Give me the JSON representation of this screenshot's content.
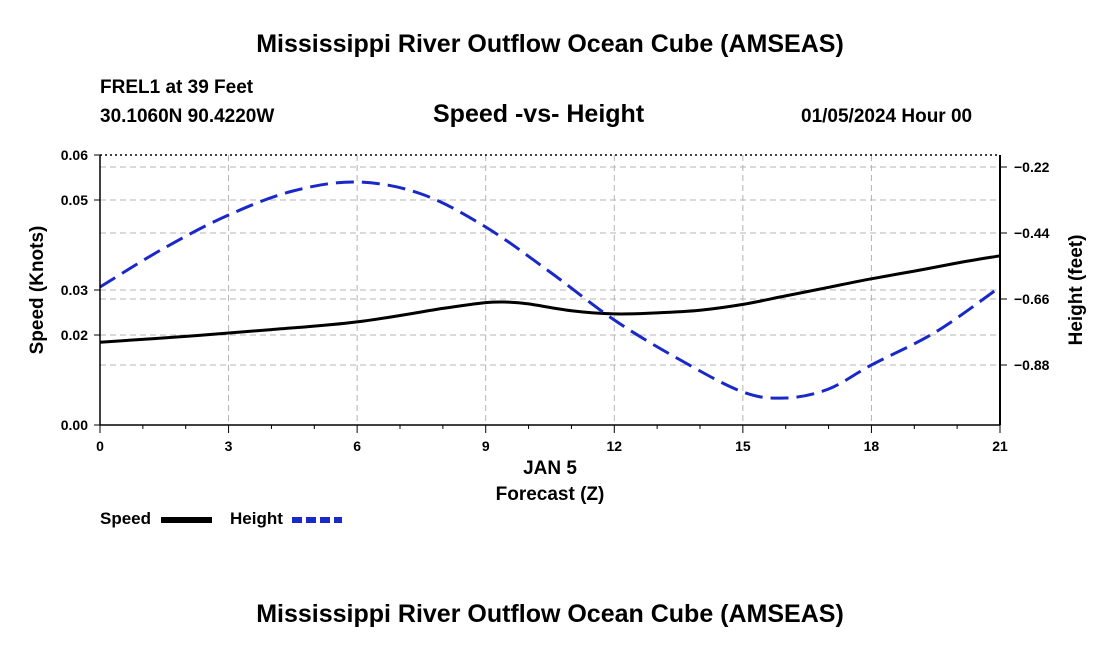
{
  "header": {
    "title_top": "Mississippi River Outflow Ocean Cube (AMSEAS)",
    "title_bottom": "Mississippi River Outflow Ocean Cube (AMSEAS)",
    "station_name": "FREL1 at 39 Feet",
    "station_coords": "30.1060N  90.4220W",
    "subtitle": "Speed -vs- Height",
    "datestamp": "01/05/2024 Hour 00"
  },
  "legend": {
    "speed_label": "Speed",
    "height_label": "Height"
  },
  "colors": {
    "speed": "#000000",
    "height": "#1a28c8",
    "grid": "#b4b4b4"
  },
  "chart_data": {
    "type": "line",
    "title": "Speed -vs- Height",
    "xlabel": "Forecast (Z)",
    "xlabel_date": "JAN 5",
    "ylabel": "Speed (Knots)",
    "y2label": "Height (feet)",
    "xlim": [
      0,
      21
    ],
    "ylim": [
      0,
      0.06
    ],
    "y2lim": [
      -1.08,
      -0.18
    ],
    "x_ticks": [
      0,
      3,
      6,
      9,
      12,
      15,
      18,
      21
    ],
    "x_tick_labels": [
      "0",
      "3",
      "6",
      "9",
      "12",
      "15",
      "18",
      "21"
    ],
    "y_ticks": [
      0.0,
      0.02,
      0.03,
      0.05,
      0.06
    ],
    "y_tick_labels": [
      "0.00",
      "0.02",
      "0.03",
      "0.05",
      "0.06"
    ],
    "y2_ticks": [
      -0.22,
      -0.44,
      -0.66,
      -0.88
    ],
    "y2_tick_labels": [
      "−0.22",
      "−0.44",
      "−0.66",
      "−0.88"
    ],
    "grid": true,
    "series": [
      {
        "name": "Speed",
        "axis": "left",
        "style": "solid",
        "x": [
          0,
          2,
          4,
          6,
          8,
          9,
          9.5,
          10,
          11,
          12,
          13,
          14,
          15,
          16,
          17,
          18,
          19,
          20,
          21
        ],
        "values": [
          0.0184,
          0.0197,
          0.0212,
          0.0229,
          0.0259,
          0.0272,
          0.0273,
          0.0269,
          0.0254,
          0.0247,
          0.0249,
          0.0255,
          0.0268,
          0.0287,
          0.0306,
          0.0325,
          0.0342,
          0.036,
          0.0376
        ]
      },
      {
        "name": "Height",
        "axis": "right",
        "style": "dashed",
        "x": [
          0,
          1.5,
          3,
          4.5,
          6,
          7.5,
          9,
          10.5,
          12,
          13.5,
          15,
          16,
          17,
          18,
          19.5,
          21
        ],
        "values": [
          -0.62,
          -0.49,
          -0.38,
          -0.3,
          -0.27,
          -0.31,
          -0.42,
          -0.57,
          -0.73,
          -0.86,
          -0.97,
          -0.99,
          -0.96,
          -0.88,
          -0.77,
          -0.62
        ]
      }
    ]
  }
}
